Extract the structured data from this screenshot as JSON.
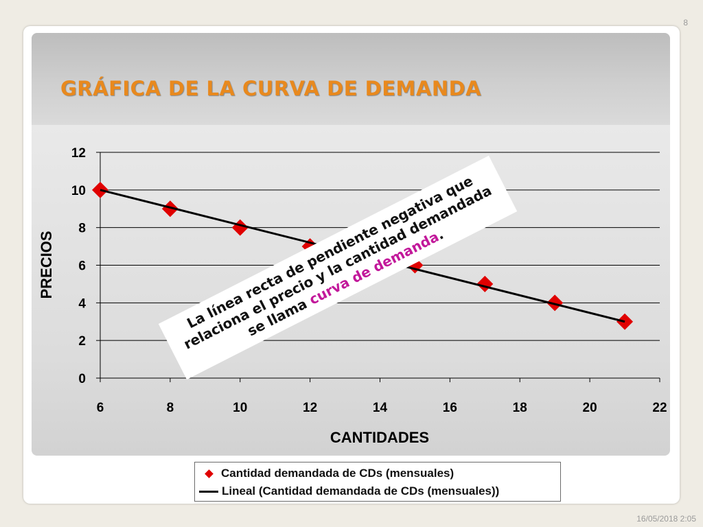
{
  "slide": {
    "number": "8",
    "date": "16/05/2018 2:05",
    "title": "GRÁFICA DE LA CURVA DE DEMANDA"
  },
  "annotation": {
    "line1": "La línea recta de pendiente negativa que",
    "line2": "relaciona el precio y la cantidad demandada",
    "line3_prefix": "se llama ",
    "line3_highlight": "curva de demanda",
    "line3_suffix": "."
  },
  "colors": {
    "title": "#e8891e",
    "marker": "#e00000",
    "trendline": "#000000",
    "highlight": "#c2189a"
  },
  "chart_data": {
    "type": "scatter",
    "xlabel": "CANTIDADES",
    "ylabel": "PRECIOS",
    "xlim": [
      6,
      22
    ],
    "ylim": [
      0,
      12
    ],
    "xticks": [
      6,
      8,
      10,
      12,
      14,
      16,
      18,
      20,
      22
    ],
    "yticks": [
      0,
      2,
      4,
      6,
      8,
      10,
      12
    ],
    "grid": "horizontal",
    "legend_position": "bottom",
    "series": [
      {
        "name": "Cantidad demandada de CDs (mensuales)",
        "marker": "diamond",
        "color": "#e00000",
        "x": [
          6,
          8,
          10,
          12,
          15,
          17,
          19,
          21
        ],
        "y": [
          10,
          9,
          8,
          7,
          6,
          5,
          4,
          3
        ]
      },
      {
        "name": "Lineal (Cantidad demandada de CDs (mensuales))",
        "type": "trendline",
        "color": "#000000",
        "x": [
          6,
          21
        ],
        "y": [
          10,
          3
        ]
      }
    ]
  }
}
